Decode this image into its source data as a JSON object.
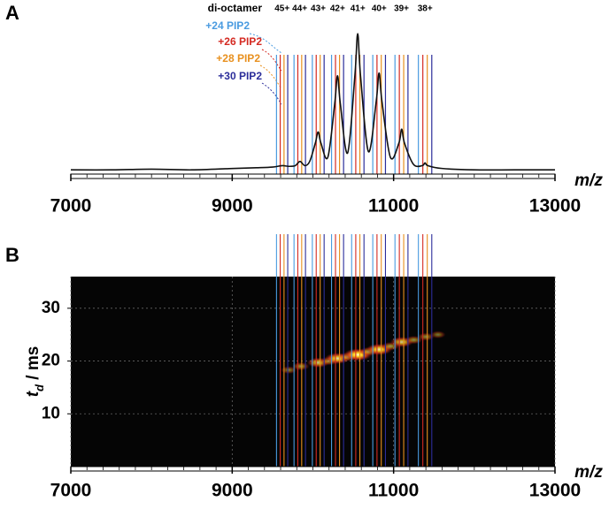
{
  "chart_data": [
    {
      "type": "line",
      "panel": "A",
      "x_label": "m/z",
      "xlim": [
        7000,
        13000
      ],
      "xticks": [
        7000,
        9000,
        11000,
        13000
      ],
      "minor_tick_step": 200,
      "ylim": [
        0,
        100
      ],
      "x": [
        7000,
        7500,
        8000,
        8500,
        9000,
        9300,
        9500,
        9620,
        9700,
        9780,
        9840,
        9900,
        9960,
        10030,
        10065,
        10100,
        10185,
        10270,
        10305,
        10340,
        10430,
        10520,
        10555,
        10590,
        10688,
        10785,
        10820,
        10855,
        10960,
        11065,
        11100,
        11135,
        11245,
        11355,
        11390,
        11425,
        11600,
        12000,
        12500,
        13000
      ],
      "series": [
        {
          "color": "#111111",
          "values": [
            3,
            3,
            3.5,
            3,
            4,
            4.5,
            5,
            6,
            5.5,
            6,
            9,
            6,
            9,
            22,
            30,
            22,
            12,
            50,
            70,
            50,
            15,
            70,
            100,
            70,
            16,
            52,
            72,
            52,
            12,
            22,
            32,
            22,
            7,
            6,
            8,
            6,
            4,
            3,
            3,
            3
          ]
        }
      ],
      "complex_label": "di-octamer",
      "charges": [
        "45+",
        "44+",
        "43+",
        "42+",
        "41+",
        "40+",
        "39+",
        "38+"
      ],
      "reference_lines": [
        {
          "name": "+24 PIP2",
          "color": "#4a9be0",
          "x": [
            9549,
            9766,
            9993,
            10231,
            10480,
            10742,
            11017,
            11307
          ]
        },
        {
          "name": "+26 PIP2",
          "color": "#d42a22",
          "x": [
            9595,
            9813,
            10041,
            10280,
            10531,
            10794,
            11071,
            11362
          ]
        },
        {
          "name": "+28 PIP2",
          "color": "#e8901e",
          "x": [
            9642,
            9861,
            10090,
            10330,
            10582,
            10847,
            11125,
            11417
          ]
        },
        {
          "name": "+30 PIP2",
          "color": "#2b2d9a",
          "x": [
            9688,
            9908,
            10139,
            10380,
            10633,
            10899,
            11178,
            11473
          ]
        }
      ]
    },
    {
      "type": "heatmap",
      "panel": "B",
      "x_label": "m/z",
      "y_label": [
        "t",
        "d",
        " / ms"
      ],
      "xlim": [
        7000,
        13000
      ],
      "xticks": [
        7000,
        9000,
        11000,
        13000
      ],
      "minor_tick_step": 200,
      "ylim": [
        0,
        36
      ],
      "yticks": [
        10,
        20,
        30
      ],
      "grid": true,
      "background": "#050505",
      "points": {
        "x": [
          9700,
          9850,
          10065,
          10200,
          10305,
          10430,
          10555,
          10690,
          10820,
          10960,
          11100,
          11250,
          11400,
          11550
        ],
        "y": [
          18.3,
          19,
          19.7,
          20,
          20.5,
          20.8,
          21.2,
          21.8,
          22.2,
          22.8,
          23.6,
          24,
          24.6,
          25
        ],
        "values": [
          15,
          25,
          60,
          30,
          80,
          35,
          100,
          35,
          85,
          30,
          65,
          25,
          20,
          10
        ]
      }
    }
  ]
}
